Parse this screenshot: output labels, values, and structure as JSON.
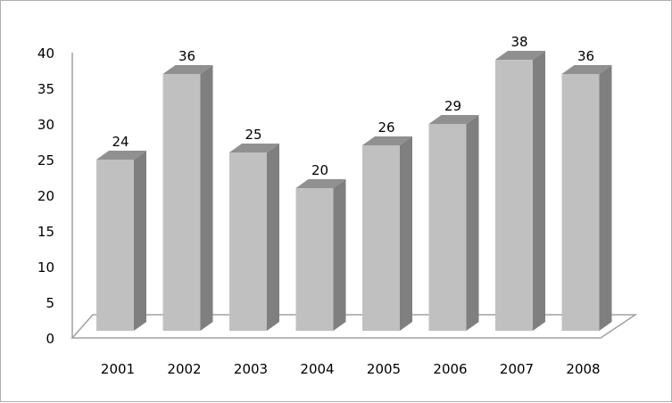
{
  "chart_data": {
    "type": "bar",
    "style": "3d-column",
    "categories": [
      "2001",
      "2002",
      "2003",
      "2004",
      "2005",
      "2006",
      "2007",
      "2008"
    ],
    "values": [
      24,
      36,
      25,
      20,
      26,
      29,
      38,
      36
    ],
    "data_labels": true,
    "title": "",
    "xlabel": "",
    "ylabel": "",
    "ylim": [
      0,
      40
    ],
    "yticks": [
      0,
      5,
      10,
      15,
      20,
      25,
      30,
      35,
      40
    ],
    "grid": false,
    "legend": "none",
    "colors": {
      "front": "#c0c0c0",
      "side": "#7f7f7f",
      "top": "#909090",
      "axis": "#a0a0a0"
    }
  }
}
